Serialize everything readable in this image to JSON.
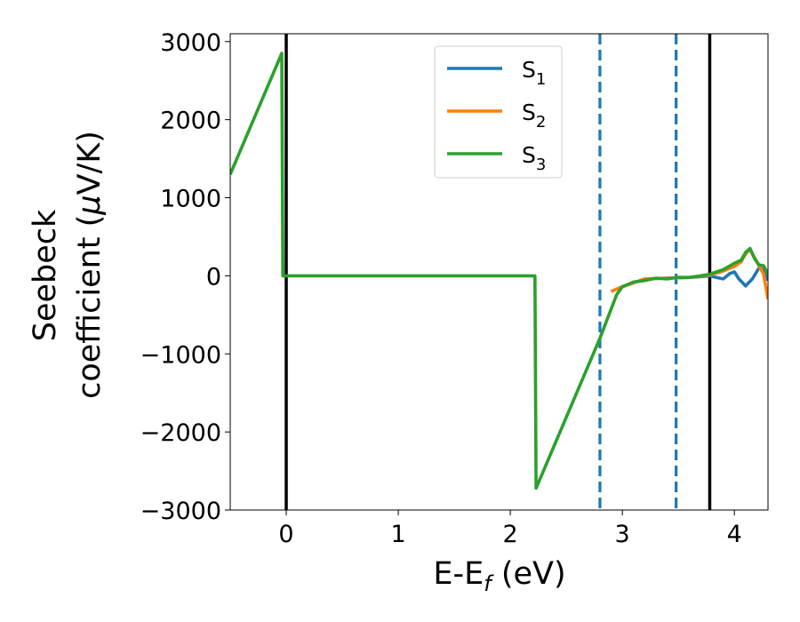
{
  "chart_data": {
    "type": "line",
    "xlabel_main": "E-E",
    "xlabel_sub": "f",
    "xlabel_unit": " (eV)",
    "ylabel_line1": "Seebeck",
    "ylabel_line2": "coefficient  (",
    "ylabel_mu": "μ",
    "ylabel_unit": "V/K)",
    "xlim": [
      -0.5,
      4.3
    ],
    "ylim": [
      -3000,
      3100
    ],
    "x_ticks": [
      0,
      1,
      2,
      3,
      4
    ],
    "x_tick_labels": [
      "0",
      "1",
      "2",
      "3",
      "4"
    ],
    "y_ticks": [
      -3000,
      -2000,
      -1000,
      0,
      1000,
      2000,
      3000
    ],
    "y_tick_labels": [
      "−3000",
      "−2000",
      "−1000",
      "0",
      "1000",
      "2000",
      "3000"
    ],
    "grid": false,
    "legend_position": "top-center",
    "vlines": [
      {
        "x": 0.0,
        "style": "solid",
        "color": "#000000"
      },
      {
        "x": 2.8,
        "style": "dashed",
        "color": "#1f77b4"
      },
      {
        "x": 3.48,
        "style": "dashed",
        "color": "#1f77b4"
      },
      {
        "x": 3.78,
        "style": "solid",
        "color": "#000000"
      }
    ],
    "series": [
      {
        "name": "S",
        "sub": "1",
        "color": "#1f77b4",
        "points": [
          [
            2.9,
            -200
          ],
          [
            3.0,
            -140
          ],
          [
            3.2,
            -40
          ],
          [
            3.4,
            -30
          ],
          [
            3.6,
            -20
          ],
          [
            3.7,
            -10
          ],
          [
            3.78,
            0
          ],
          [
            3.84,
            -20
          ],
          [
            3.9,
            -40
          ],
          [
            3.96,
            30
          ],
          [
            4.0,
            50
          ],
          [
            4.04,
            -40
          ],
          [
            4.1,
            -130
          ],
          [
            4.16,
            -40
          ],
          [
            4.22,
            100
          ],
          [
            4.26,
            80
          ],
          [
            4.3,
            -60
          ]
        ]
      },
      {
        "name": "S",
        "sub": "2",
        "color": "#ff7f0e",
        "points": [
          [
            2.9,
            -200
          ],
          [
            3.0,
            -140
          ],
          [
            3.2,
            -40
          ],
          [
            3.4,
            -30
          ],
          [
            3.6,
            -20
          ],
          [
            3.78,
            10
          ],
          [
            3.9,
            60
          ],
          [
            4.0,
            120
          ],
          [
            4.06,
            180
          ],
          [
            4.1,
            280
          ],
          [
            4.14,
            340
          ],
          [
            4.18,
            230
          ],
          [
            4.22,
            130
          ],
          [
            4.26,
            20
          ],
          [
            4.3,
            -300
          ]
        ]
      },
      {
        "name": "S",
        "sub": "3",
        "color": "#2ca02c",
        "points": [
          [
            -0.5,
            1300
          ],
          [
            -0.04,
            2850
          ],
          [
            -0.03,
            0
          ],
          [
            2.22,
            0
          ],
          [
            2.23,
            -2720
          ],
          [
            2.8,
            -800
          ],
          [
            2.95,
            -240
          ],
          [
            3.0,
            -140
          ],
          [
            3.1,
            -80
          ],
          [
            3.2,
            -60
          ],
          [
            3.3,
            -30
          ],
          [
            3.4,
            -40
          ],
          [
            3.5,
            -20
          ],
          [
            3.6,
            -20
          ],
          [
            3.7,
            0
          ],
          [
            3.78,
            20
          ],
          [
            3.9,
            80
          ],
          [
            4.0,
            160
          ],
          [
            4.06,
            200
          ],
          [
            4.1,
            300
          ],
          [
            4.14,
            350
          ],
          [
            4.18,
            220
          ],
          [
            4.22,
            140
          ],
          [
            4.26,
            130
          ],
          [
            4.3,
            20
          ]
        ]
      }
    ]
  }
}
